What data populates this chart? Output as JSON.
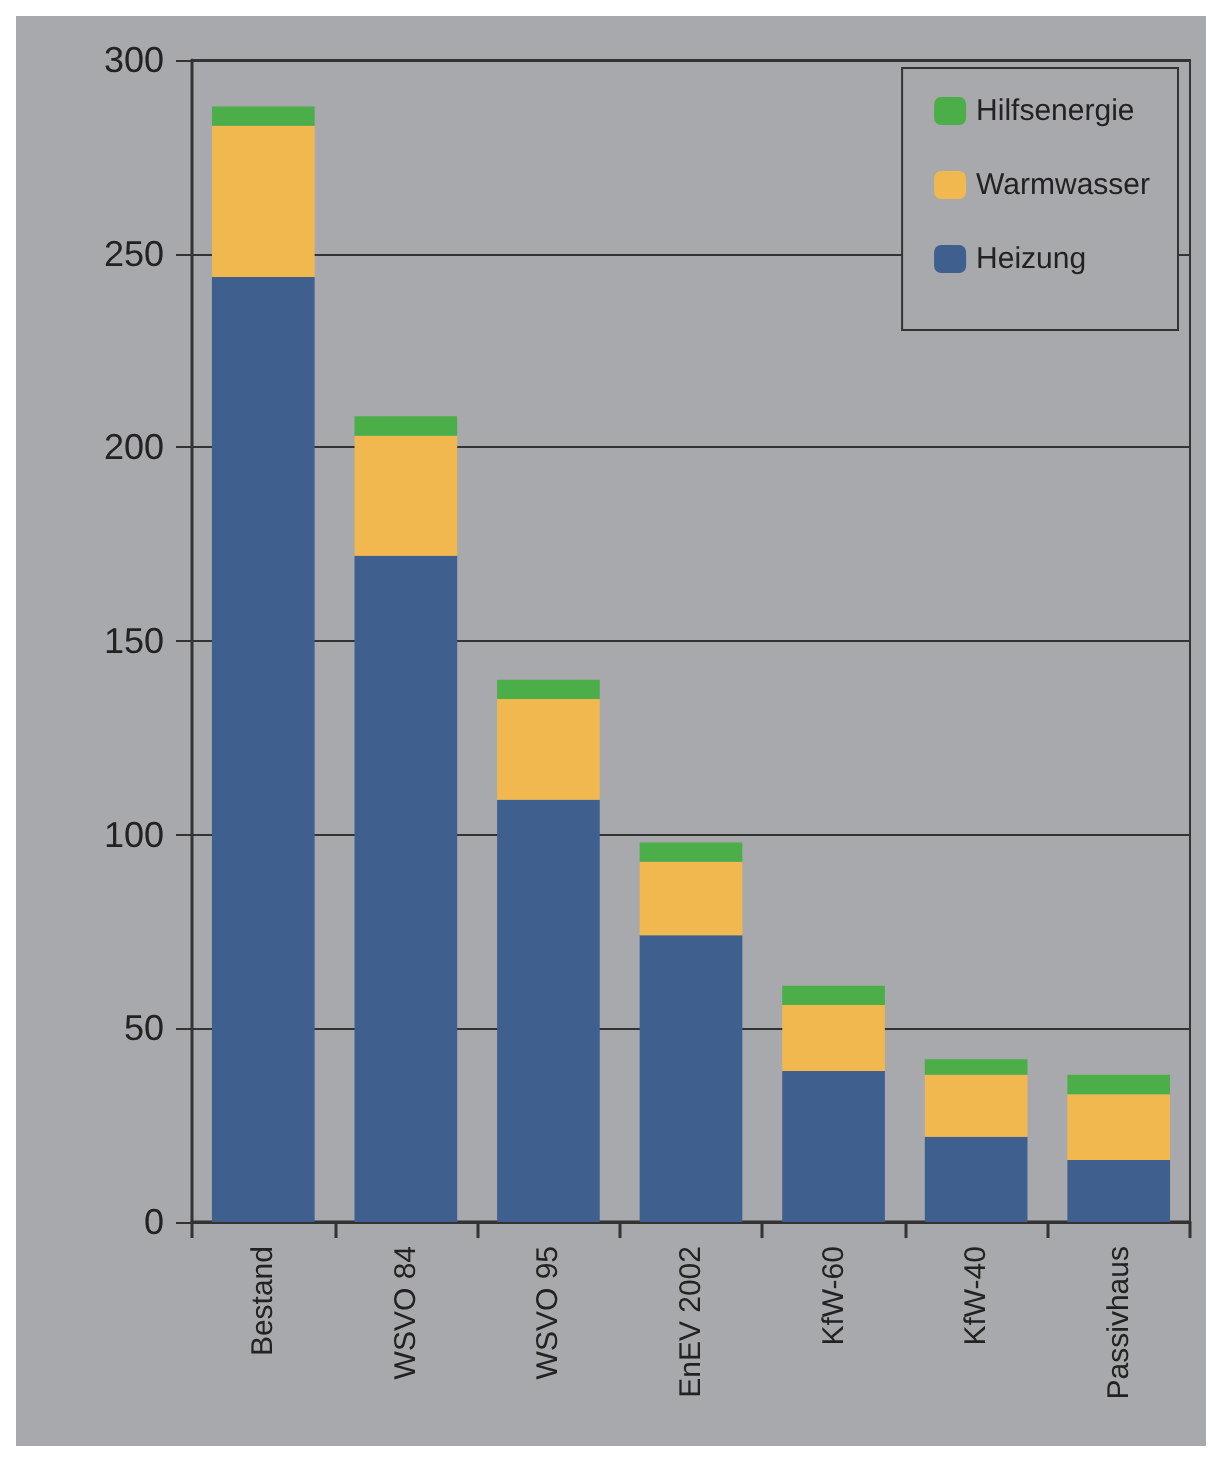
{
  "chart_data": {
    "type": "bar",
    "stacked": true,
    "categories": [
      "Bestand",
      "WSVO 84",
      "WSVO 95",
      "EnEV 2002",
      "KfW-60",
      "KfW-40",
      "Passivhaus"
    ],
    "series": [
      {
        "name": "Heizung",
        "color": "#3f5f8f",
        "values": [
          244,
          172,
          109,
          74,
          39,
          22,
          16
        ]
      },
      {
        "name": "Warmwasser",
        "color": "#f0b84e",
        "values": [
          39,
          31,
          26,
          19,
          17,
          16,
          17
        ]
      },
      {
        "name": "Hilfsenergie",
        "color": "#4bae48",
        "values": [
          5,
          5,
          5,
          5,
          5,
          4,
          5
        ]
      }
    ],
    "ylim": [
      0,
      300
    ],
    "yticks": [
      0,
      50,
      100,
      150,
      200,
      250,
      300
    ],
    "grid": "y",
    "legend": "top right"
  }
}
